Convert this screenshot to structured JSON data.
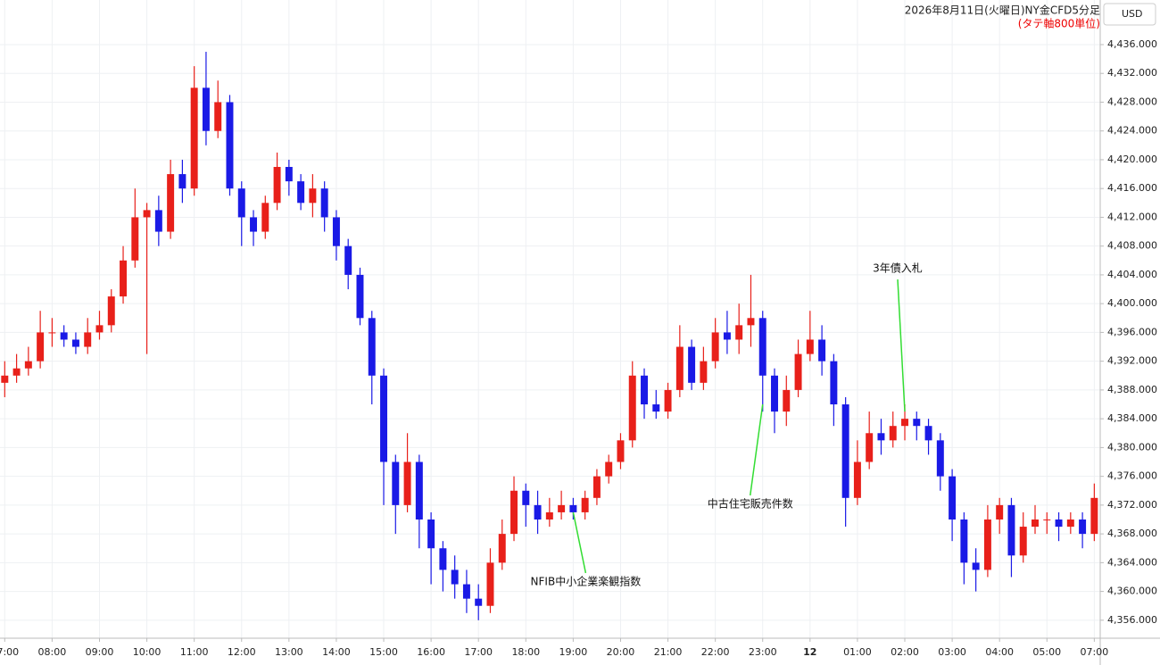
{
  "chart_data": {
    "type": "candlestick",
    "title": "2026年8月11日(火曜日)NY金CFD5分足",
    "subtitle": "(タテ軸800単位)",
    "currency": "USD",
    "up_color": "#e8201a",
    "down_color": "#1a1ae6",
    "grid": true,
    "x": [
      "07:00",
      "07:15",
      "07:30",
      "07:45",
      "08:00",
      "08:15",
      "08:30",
      "08:45",
      "09:00",
      "09:15",
      "09:30",
      "09:45",
      "10:00",
      "10:15",
      "10:30",
      "10:45",
      "11:00",
      "11:15",
      "11:30",
      "11:45",
      "12:00",
      "12:15",
      "12:30",
      "12:45",
      "13:00",
      "13:15",
      "13:30",
      "13:45",
      "14:00",
      "14:15",
      "14:30",
      "14:45",
      "15:00",
      "15:15",
      "15:30",
      "15:45",
      "16:00",
      "16:15",
      "16:30",
      "16:45",
      "17:00",
      "17:15",
      "17:30",
      "17:45",
      "18:00",
      "18:15",
      "18:30",
      "18:45",
      "19:00",
      "19:15",
      "19:30",
      "19:45",
      "20:00",
      "20:15",
      "20:30",
      "20:45",
      "21:00",
      "21:15",
      "21:30",
      "21:45",
      "22:00",
      "22:15",
      "22:30",
      "22:45",
      "23:00",
      "23:15",
      "23:30",
      "23:45",
      "00:00",
      "00:15",
      "00:30",
      "00:45",
      "01:00",
      "01:15",
      "01:30",
      "01:45",
      "02:00",
      "02:15",
      "02:30",
      "02:45",
      "03:00",
      "03:15",
      "03:30",
      "03:45",
      "04:00",
      "04:15",
      "04:30",
      "04:45",
      "05:00",
      "05:15",
      "05:30",
      "05:45",
      "07:00"
    ],
    "open": [
      4389,
      4390,
      4391,
      4392,
      4396,
      4396,
      4395,
      4394,
      4396,
      4397,
      4401,
      4406,
      4412,
      4413,
      4410,
      4418,
      4416,
      4430,
      4424,
      4428,
      4416,
      4412,
      4410,
      4414,
      4419,
      4417,
      4414,
      4416,
      4412,
      4408,
      4404,
      4398,
      4390,
      4378,
      4372,
      4378,
      4370,
      4366,
      4363,
      4361,
      4359,
      4358,
      4364,
      4368,
      4374,
      4372,
      4370,
      4371,
      4372,
      4371,
      4373,
      4376,
      4378,
      4381,
      4390,
      4386,
      4385,
      4388,
      4394,
      4389,
      4392,
      4396,
      4395,
      4397,
      4398,
      4390,
      4385,
      4388,
      4393,
      4395,
      4392,
      4386,
      4373,
      4378,
      4382,
      4381,
      4383,
      4384,
      4383,
      4381,
      4376,
      4370,
      4364,
      4363,
      4370,
      4372,
      4365,
      4369,
      4370,
      4370,
      4369,
      4370,
      4368
    ],
    "high": [
      4392,
      4393,
      4394,
      4399,
      4398,
      4397,
      4396,
      4398,
      4399,
      4402,
      4408,
      4416,
      4414,
      4415,
      4420,
      4420,
      4433,
      4435,
      4431,
      4429,
      4417,
      4413,
      4415,
      4421,
      4420,
      4418,
      4418,
      4417,
      4413,
      4409,
      4405,
      4399,
      4391,
      4379,
      4382,
      4379,
      4371,
      4367,
      4365,
      4363,
      4361,
      4366,
      4370,
      4376,
      4375,
      4374,
      4373,
      4374,
      4373,
      4374,
      4377,
      4379,
      4382,
      4392,
      4391,
      4388,
      4389,
      4397,
      4395,
      4394,
      4398,
      4399,
      4400,
      4404,
      4399,
      4391,
      4390,
      4395,
      4399,
      4397,
      4393,
      4387,
      4381,
      4385,
      4384,
      4385,
      4386,
      4385,
      4384,
      4382,
      4377,
      4371,
      4366,
      4372,
      4373,
      4373,
      4371,
      4372,
      4371,
      4371,
      4371,
      4371,
      4375
    ],
    "low": [
      4387,
      4389,
      4390,
      4391,
      4394,
      4394,
      4393,
      4393,
      4395,
      4396,
      4400,
      4405,
      4393,
      4408,
      4409,
      4414,
      4415,
      4422,
      4423,
      4415,
      4408,
      4408,
      4409,
      4413,
      4415,
      4413,
      4412,
      4410,
      4406,
      4402,
      4397,
      4386,
      4372,
      4368,
      4371,
      4366,
      4361,
      4360,
      4359,
      4357,
      4356,
      4357,
      4363,
      4367,
      4369,
      4368,
      4369,
      4370,
      4370,
      4370,
      4372,
      4375,
      4377,
      4380,
      4384,
      4384,
      4384,
      4387,
      4388,
      4388,
      4391,
      4393,
      4393,
      4394,
      4385,
      4382,
      4383,
      4387,
      4392,
      4390,
      4383,
      4369,
      4372,
      4377,
      4379,
      4380,
      4381,
      4381,
      4379,
      4374,
      4367,
      4361,
      4360,
      4362,
      4368,
      4362,
      4364,
      4368,
      4368,
      4367,
      4368,
      4366,
      4367
    ],
    "close": [
      4390,
      4391,
      4392,
      4396,
      4396,
      4395,
      4394,
      4396,
      4397,
      4401,
      4406,
      4412,
      4413,
      4410,
      4418,
      4416,
      4430,
      4424,
      4428,
      4416,
      4412,
      4410,
      4414,
      4419,
      4417,
      4414,
      4416,
      4412,
      4408,
      4404,
      4398,
      4390,
      4378,
      4372,
      4378,
      4370,
      4366,
      4363,
      4361,
      4359,
      4358,
      4364,
      4368,
      4374,
      4372,
      4370,
      4371,
      4372,
      4371,
      4373,
      4376,
      4378,
      4381,
      4390,
      4386,
      4385,
      4388,
      4394,
      4389,
      4392,
      4396,
      4395,
      4397,
      4398,
      4390,
      4385,
      4388,
      4393,
      4395,
      4392,
      4386,
      4373,
      4378,
      4382,
      4381,
      4383,
      4384,
      4383,
      4381,
      4376,
      4370,
      4364,
      4363,
      4370,
      4372,
      4365,
      4369,
      4370,
      4370,
      4369,
      4370,
      4368,
      4373
    ],
    "xlim": [
      -0.4,
      92.5
    ],
    "xticks": [
      {
        "value": 0,
        "label": "07:00"
      },
      {
        "value": 4,
        "label": "08:00"
      },
      {
        "value": 8,
        "label": "09:00"
      },
      {
        "value": 12,
        "label": "10:00"
      },
      {
        "value": 16,
        "label": "11:00"
      },
      {
        "value": 20,
        "label": "12:00"
      },
      {
        "value": 24,
        "label": "13:00"
      },
      {
        "value": 28,
        "label": "14:00"
      },
      {
        "value": 32,
        "label": "15:00"
      },
      {
        "value": 36,
        "label": "16:00"
      },
      {
        "value": 40,
        "label": "17:00"
      },
      {
        "value": 44,
        "label": "18:00"
      },
      {
        "value": 48,
        "label": "19:00"
      },
      {
        "value": 52,
        "label": "20:00"
      },
      {
        "value": 56,
        "label": "21:00"
      },
      {
        "value": 60,
        "label": "22:00"
      },
      {
        "value": 64,
        "label": "23:00"
      },
      {
        "value": 68,
        "label": "12"
      },
      {
        "value": 72,
        "label": "01:00"
      },
      {
        "value": 76,
        "label": "02:00"
      },
      {
        "value": 80,
        "label": "03:00"
      },
      {
        "value": 84,
        "label": "04:00"
      },
      {
        "value": 88,
        "label": "05:00"
      },
      {
        "value": 92,
        "label": "07:00"
      }
    ],
    "ylim": [
      4353.5,
      4442.2
    ],
    "yticks": [
      {
        "value": 4356,
        "label": "4,356.000"
      },
      {
        "value": 4360,
        "label": "4,360.000"
      },
      {
        "value": 4364,
        "label": "4,364.000"
      },
      {
        "value": 4368,
        "label": "4,368.000"
      },
      {
        "value": 4372,
        "label": "4,372.000"
      },
      {
        "value": 4376,
        "label": "4,376.000"
      },
      {
        "value": 4380,
        "label": "4,380.000"
      },
      {
        "value": 4384,
        "label": "4,384.000"
      },
      {
        "value": 4388,
        "label": "4,388.000"
      },
      {
        "value": 4392,
        "label": "4,392.000"
      },
      {
        "value": 4396,
        "label": "4,396.000"
      },
      {
        "value": 4400,
        "label": "4,400.000"
      },
      {
        "value": 4404,
        "label": "4,404.000"
      },
      {
        "value": 4408,
        "label": "4,408.000"
      },
      {
        "value": 4412,
        "label": "4,412.000"
      },
      {
        "value": 4416,
        "label": "4,416.000"
      },
      {
        "value": 4420,
        "label": "4,420.000"
      },
      {
        "value": 4424,
        "label": "4,424.000"
      },
      {
        "value": 4428,
        "label": "4,428.000"
      },
      {
        "value": 4432,
        "label": "4,432.000"
      },
      {
        "value": 4436,
        "label": "4,436.000"
      }
    ],
    "annotations": [
      {
        "text": "NFIB中小企業楽観指数",
        "x": 48,
        "y": 4371
      },
      {
        "text": "中古住宅販売件数",
        "x": 64,
        "y": 4386
      },
      {
        "text": "3年債入札",
        "x": 76,
        "y": 4385
      }
    ]
  }
}
